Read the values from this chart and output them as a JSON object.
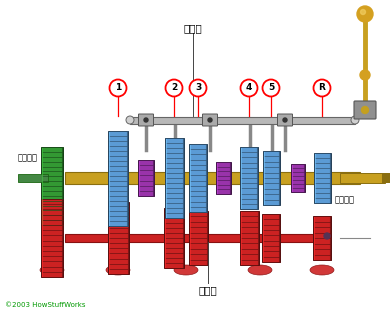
{
  "bg_color": "#ffffff",
  "text_huanDangCha": "换档叉",
  "text_zhongJianZhou": "中间轴",
  "text_zhiFaDongJi": "至发动机",
  "text_zhiChaSuQi": "至差速器",
  "text_copyright": "©2003 HowStuffWorks",
  "color_blue": "#5b9bd5",
  "color_blue_dark": "#2e6099",
  "color_red": "#cc2222",
  "color_red_dark": "#881111",
  "color_purple": "#9933aa",
  "color_purple_dark": "#661177",
  "color_gold": "#c8a020",
  "color_gold_dark": "#8a6e10",
  "color_green": "#339933",
  "color_green_dark": "#1a6611",
  "color_gray": "#999999",
  "color_gray_dark": "#555555",
  "color_orange": "#cc8800",
  "color_orange_ball": "#cc9900"
}
